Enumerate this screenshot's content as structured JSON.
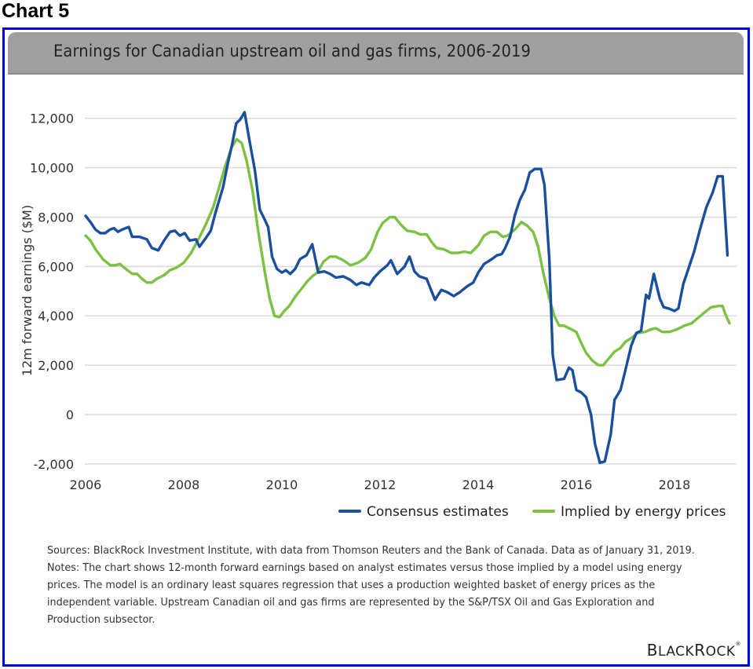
{
  "page": {
    "heading": "Chart 5",
    "accent_border_color": "#0000e6",
    "title_bar_color": "#a0a0a0"
  },
  "chart_data": {
    "type": "line",
    "title": "Earnings for Canadian upstream oil and gas firms, 2006-2019",
    "xlabel": "",
    "ylabel": "12m forward earnings ($M)",
    "xlim": [
      2006,
      2019.1
    ],
    "ylim": [
      -2000,
      12000
    ],
    "x_ticks": [
      2006,
      2008,
      2010,
      2012,
      2014,
      2016,
      2018
    ],
    "x_tick_labels": [
      "2006",
      "2008",
      "2010",
      "2012",
      "2014",
      "2016",
      "2018"
    ],
    "y_ticks": [
      -2000,
      0,
      2000,
      4000,
      6000,
      8000,
      10000,
      12000
    ],
    "y_tick_labels": [
      "-2,000",
      "0",
      "2,000",
      "4,000",
      "6,000",
      "8,000",
      "10,000",
      "12,000"
    ],
    "grid": "horizontal",
    "legend_position": "bottom-right",
    "series": [
      {
        "name": "Consensus estimates",
        "color": "#1a4f9f",
        "points": [
          [
            2006.0,
            8050
          ],
          [
            2006.1,
            7800
          ],
          [
            2006.2,
            7500
          ],
          [
            2006.3,
            7350
          ],
          [
            2006.4,
            7350
          ],
          [
            2006.5,
            7500
          ],
          [
            2006.58,
            7550
          ],
          [
            2006.66,
            7400
          ],
          [
            2006.75,
            7500
          ],
          [
            2006.88,
            7600
          ],
          [
            2006.95,
            7200
          ],
          [
            2007.1,
            7200
          ],
          [
            2007.25,
            7100
          ],
          [
            2007.35,
            6750
          ],
          [
            2007.48,
            6650
          ],
          [
            2007.6,
            7050
          ],
          [
            2007.72,
            7400
          ],
          [
            2007.82,
            7450
          ],
          [
            2007.92,
            7250
          ],
          [
            2008.02,
            7350
          ],
          [
            2008.12,
            7050
          ],
          [
            2008.25,
            7100
          ],
          [
            2008.32,
            6800
          ],
          [
            2008.45,
            7150
          ],
          [
            2008.55,
            7450
          ],
          [
            2008.65,
            8200
          ],
          [
            2008.8,
            9200
          ],
          [
            2008.9,
            10200
          ],
          [
            2008.98,
            10900
          ],
          [
            2009.07,
            11800
          ],
          [
            2009.15,
            11950
          ],
          [
            2009.24,
            12250
          ],
          [
            2009.34,
            11100
          ],
          [
            2009.45,
            9900
          ],
          [
            2009.55,
            8300
          ],
          [
            2009.65,
            7900
          ],
          [
            2009.72,
            7600
          ],
          [
            2009.8,
            6400
          ],
          [
            2009.9,
            5900
          ],
          [
            2010.0,
            5750
          ],
          [
            2010.08,
            5850
          ],
          [
            2010.17,
            5700
          ],
          [
            2010.27,
            5900
          ],
          [
            2010.37,
            6300
          ],
          [
            2010.5,
            6450
          ],
          [
            2010.62,
            6900
          ],
          [
            2010.74,
            5750
          ],
          [
            2010.86,
            5800
          ],
          [
            2010.98,
            5700
          ],
          [
            2011.1,
            5550
          ],
          [
            2011.25,
            5600
          ],
          [
            2011.4,
            5450
          ],
          [
            2011.52,
            5250
          ],
          [
            2011.62,
            5350
          ],
          [
            2011.78,
            5250
          ],
          [
            2011.88,
            5550
          ],
          [
            2012.0,
            5800
          ],
          [
            2012.15,
            6050
          ],
          [
            2012.22,
            6250
          ],
          [
            2012.35,
            5700
          ],
          [
            2012.5,
            6000
          ],
          [
            2012.6,
            6400
          ],
          [
            2012.7,
            5800
          ],
          [
            2012.8,
            5600
          ],
          [
            2012.95,
            5500
          ],
          [
            2013.05,
            5000
          ],
          [
            2013.12,
            4650
          ],
          [
            2013.25,
            5050
          ],
          [
            2013.38,
            4950
          ],
          [
            2013.5,
            4800
          ],
          [
            2013.62,
            4950
          ],
          [
            2013.78,
            5200
          ],
          [
            2013.9,
            5350
          ],
          [
            2014.0,
            5750
          ],
          [
            2014.12,
            6100
          ],
          [
            2014.28,
            6300
          ],
          [
            2014.38,
            6450
          ],
          [
            2014.48,
            6500
          ],
          [
            2014.55,
            6750
          ],
          [
            2014.65,
            7200
          ],
          [
            2014.75,
            8100
          ],
          [
            2014.85,
            8700
          ],
          [
            2014.95,
            9100
          ],
          [
            2015.05,
            9800
          ],
          [
            2015.15,
            9950
          ],
          [
            2015.28,
            9950
          ],
          [
            2015.35,
            9300
          ],
          [
            2015.45,
            6300
          ],
          [
            2015.52,
            2400
          ],
          [
            2015.6,
            1400
          ],
          [
            2015.75,
            1450
          ],
          [
            2015.85,
            1900
          ],
          [
            2015.92,
            1800
          ],
          [
            2016.0,
            1000
          ],
          [
            2016.1,
            900
          ],
          [
            2016.2,
            700
          ],
          [
            2016.3,
            0
          ],
          [
            2016.38,
            -1200
          ],
          [
            2016.48,
            -1950
          ],
          [
            2016.58,
            -1900
          ],
          [
            2016.7,
            -800
          ],
          [
            2016.78,
            600
          ],
          [
            2016.9,
            1000
          ],
          [
            2017.0,
            1800
          ],
          [
            2017.12,
            2800
          ],
          [
            2017.22,
            3300
          ],
          [
            2017.32,
            3400
          ],
          [
            2017.42,
            4850
          ],
          [
            2017.48,
            4700
          ],
          [
            2017.58,
            5700
          ],
          [
            2017.7,
            4700
          ],
          [
            2017.78,
            4350
          ],
          [
            2017.88,
            4300
          ],
          [
            2018.0,
            4200
          ],
          [
            2018.08,
            4300
          ],
          [
            2018.18,
            5300
          ],
          [
            2018.3,
            6000
          ],
          [
            2018.4,
            6600
          ],
          [
            2018.52,
            7500
          ],
          [
            2018.65,
            8400
          ],
          [
            2018.78,
            9000
          ],
          [
            2018.88,
            9650
          ],
          [
            2018.98,
            9650
          ],
          [
            2019.08,
            6450
          ]
        ]
      },
      {
        "name": "Implied by energy prices",
        "color": "#7cc142",
        "points": [
          [
            2006.0,
            7250
          ],
          [
            2006.1,
            7050
          ],
          [
            2006.2,
            6700
          ],
          [
            2006.35,
            6300
          ],
          [
            2006.5,
            6050
          ],
          [
            2006.6,
            6050
          ],
          [
            2006.7,
            6100
          ],
          [
            2006.82,
            5900
          ],
          [
            2006.95,
            5700
          ],
          [
            2007.05,
            5700
          ],
          [
            2007.15,
            5500
          ],
          [
            2007.25,
            5350
          ],
          [
            2007.35,
            5350
          ],
          [
            2007.45,
            5500
          ],
          [
            2007.6,
            5650
          ],
          [
            2007.72,
            5850
          ],
          [
            2007.85,
            5950
          ],
          [
            2008.0,
            6150
          ],
          [
            2008.15,
            6550
          ],
          [
            2008.3,
            7100
          ],
          [
            2008.45,
            7700
          ],
          [
            2008.6,
            8400
          ],
          [
            2008.72,
            9200
          ],
          [
            2008.85,
            10100
          ],
          [
            2008.98,
            10850
          ],
          [
            2009.08,
            11150
          ],
          [
            2009.18,
            11000
          ],
          [
            2009.28,
            10300
          ],
          [
            2009.4,
            9100
          ],
          [
            2009.52,
            7400
          ],
          [
            2009.65,
            5800
          ],
          [
            2009.75,
            4700
          ],
          [
            2009.85,
            4000
          ],
          [
            2009.95,
            3950
          ],
          [
            2010.05,
            4200
          ],
          [
            2010.15,
            4400
          ],
          [
            2010.28,
            4800
          ],
          [
            2010.4,
            5100
          ],
          [
            2010.52,
            5400
          ],
          [
            2010.62,
            5600
          ],
          [
            2010.72,
            5750
          ],
          [
            2010.85,
            6200
          ],
          [
            2010.98,
            6400
          ],
          [
            2011.1,
            6400
          ],
          [
            2011.25,
            6250
          ],
          [
            2011.4,
            6050
          ],
          [
            2011.55,
            6150
          ],
          [
            2011.7,
            6350
          ],
          [
            2011.82,
            6700
          ],
          [
            2011.95,
            7400
          ],
          [
            2012.05,
            7750
          ],
          [
            2012.2,
            8000
          ],
          [
            2012.3,
            8000
          ],
          [
            2012.42,
            7700
          ],
          [
            2012.55,
            7450
          ],
          [
            2012.7,
            7400
          ],
          [
            2012.82,
            7300
          ],
          [
            2012.95,
            7300
          ],
          [
            2013.05,
            7000
          ],
          [
            2013.15,
            6750
          ],
          [
            2013.3,
            6700
          ],
          [
            2013.45,
            6550
          ],
          [
            2013.58,
            6550
          ],
          [
            2013.72,
            6600
          ],
          [
            2013.85,
            6550
          ],
          [
            2014.0,
            6850
          ],
          [
            2014.12,
            7250
          ],
          [
            2014.25,
            7400
          ],
          [
            2014.38,
            7400
          ],
          [
            2014.5,
            7200
          ],
          [
            2014.6,
            7250
          ],
          [
            2014.75,
            7500
          ],
          [
            2014.88,
            7800
          ],
          [
            2015.0,
            7650
          ],
          [
            2015.12,
            7400
          ],
          [
            2015.22,
            6800
          ],
          [
            2015.32,
            5800
          ],
          [
            2015.45,
            4700
          ],
          [
            2015.55,
            4000
          ],
          [
            2015.65,
            3600
          ],
          [
            2015.75,
            3600
          ],
          [
            2015.9,
            3450
          ],
          [
            2016.0,
            3350
          ],
          [
            2016.1,
            2900
          ],
          [
            2016.2,
            2500
          ],
          [
            2016.32,
            2200
          ],
          [
            2016.45,
            2000
          ],
          [
            2016.55,
            2000
          ],
          [
            2016.65,
            2250
          ],
          [
            2016.78,
            2550
          ],
          [
            2016.9,
            2700
          ],
          [
            2017.0,
            2950
          ],
          [
            2017.12,
            3100
          ],
          [
            2017.25,
            3300
          ],
          [
            2017.4,
            3350
          ],
          [
            2017.52,
            3450
          ],
          [
            2017.62,
            3500
          ],
          [
            2017.75,
            3350
          ],
          [
            2017.9,
            3350
          ],
          [
            2018.05,
            3450
          ],
          [
            2018.2,
            3600
          ],
          [
            2018.35,
            3700
          ],
          [
            2018.5,
            3950
          ],
          [
            2018.62,
            4150
          ],
          [
            2018.75,
            4350
          ],
          [
            2018.9,
            4400
          ],
          [
            2018.98,
            4400
          ],
          [
            2019.03,
            4100
          ],
          [
            2019.12,
            3700
          ]
        ]
      }
    ]
  },
  "notes": {
    "sources": "Sources: BlackRock Investment Institute, with data from Thomson Reuters and the Bank of Canada. Data as of January 31, 2019.",
    "notes": "Notes: The chart shows 12-month forward earnings based on analyst estimates versus those implied by a model using energy prices. The model is an ordinary least squares regression that uses a production weighted basket of energy prices as the independent variable. Upstream Canadian oil and gas firms are represented by the S&P/TSX Oil and Gas Exploration and Production subsector."
  },
  "logo": {
    "first_big": "B",
    "first_rest": "LACK",
    "second_big": "R",
    "second_rest": "OCK",
    "mark": "®"
  }
}
